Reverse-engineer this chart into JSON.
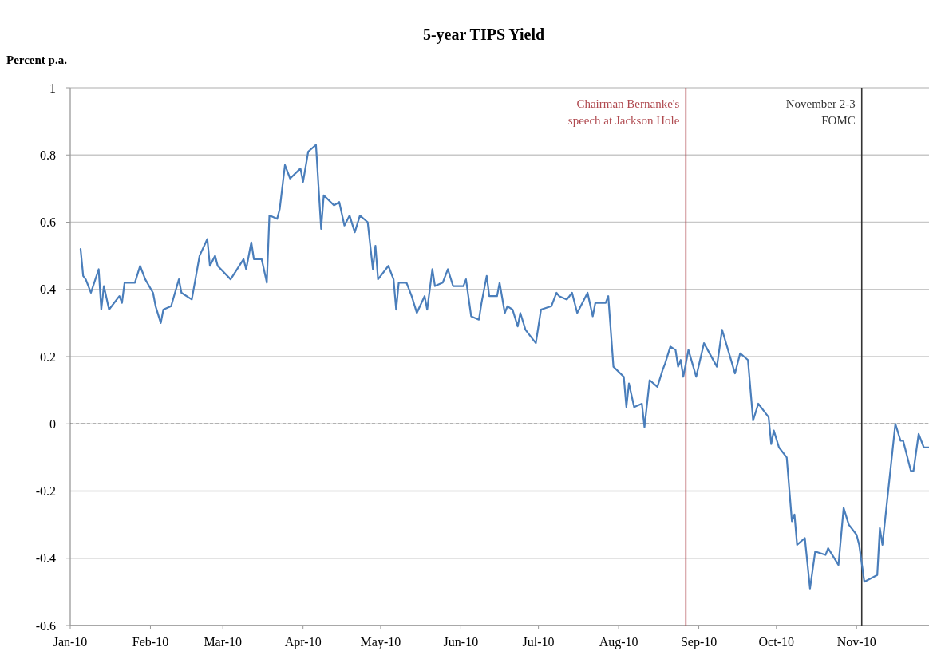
{
  "chart_data": {
    "type": "line",
    "title": "5-year TIPS Yield",
    "ylabel": "Percent p.a.",
    "x": [
      "2010-01-05",
      "2010-01-06",
      "2010-01-07",
      "2010-01-09",
      "2010-01-12",
      "2010-01-13",
      "2010-01-14",
      "2010-01-16",
      "2010-01-20",
      "2010-01-21",
      "2010-01-22",
      "2010-01-26",
      "2010-01-28",
      "2010-01-30",
      "2010-02-02",
      "2010-02-03",
      "2010-02-05",
      "2010-02-06",
      "2010-02-09",
      "2010-02-12",
      "2010-02-13",
      "2010-02-17",
      "2010-02-20",
      "2010-02-23",
      "2010-02-24",
      "2010-02-26",
      "2010-02-27",
      "2010-03-04",
      "2010-03-09",
      "2010-03-10",
      "2010-03-12",
      "2010-03-13",
      "2010-03-16",
      "2010-03-18",
      "2010-03-19",
      "2010-03-22",
      "2010-03-23",
      "2010-03-25",
      "2010-03-27",
      "2010-03-31",
      "2010-04-01",
      "2010-04-03",
      "2010-04-06",
      "2010-04-08",
      "2010-04-09",
      "2010-04-13",
      "2010-04-15",
      "2010-04-17",
      "2010-04-19",
      "2010-04-21",
      "2010-04-23",
      "2010-04-26",
      "2010-04-28",
      "2010-04-29",
      "2010-04-30",
      "2010-05-04",
      "2010-05-06",
      "2010-05-07",
      "2010-05-08",
      "2010-05-11",
      "2010-05-13",
      "2010-05-15",
      "2010-05-18",
      "2010-05-19",
      "2010-05-21",
      "2010-05-22",
      "2010-05-25",
      "2010-05-27",
      "2010-05-29",
      "2010-06-02",
      "2010-06-03",
      "2010-06-05",
      "2010-06-08",
      "2010-06-09",
      "2010-06-11",
      "2010-06-12",
      "2010-06-15",
      "2010-06-16",
      "2010-06-18",
      "2010-06-19",
      "2010-06-21",
      "2010-06-23",
      "2010-06-24",
      "2010-06-26",
      "2010-06-30",
      "2010-07-02",
      "2010-07-06",
      "2010-07-08",
      "2010-07-09",
      "2010-07-12",
      "2010-07-14",
      "2010-07-16",
      "2010-07-20",
      "2010-07-22",
      "2010-07-23",
      "2010-07-27",
      "2010-07-28",
      "2010-07-30",
      "2010-08-03",
      "2010-08-04",
      "2010-08-05",
      "2010-08-07",
      "2010-08-10",
      "2010-08-11",
      "2010-08-13",
      "2010-08-16",
      "2010-08-18",
      "2010-08-19",
      "2010-08-21",
      "2010-08-23",
      "2010-08-24",
      "2010-08-25",
      "2010-08-26",
      "2010-08-28",
      "2010-08-31",
      "2010-09-03",
      "2010-09-08",
      "2010-09-10",
      "2010-09-15",
      "2010-09-17",
      "2010-09-20",
      "2010-09-22",
      "2010-09-24",
      "2010-09-28",
      "2010-09-29",
      "2010-09-30",
      "2010-10-02",
      "2010-10-05",
      "2010-10-07",
      "2010-10-08",
      "2010-10-09",
      "2010-10-12",
      "2010-10-14",
      "2010-10-16",
      "2010-10-20",
      "2010-10-21",
      "2010-10-25",
      "2010-10-27",
      "2010-10-29",
      "2010-11-01",
      "2010-11-02",
      "2010-11-04",
      "2010-11-09",
      "2010-11-10",
      "2010-11-11",
      "2010-11-16",
      "2010-11-18",
      "2010-11-19",
      "2010-11-22",
      "2010-11-23",
      "2010-11-25",
      "2010-11-27",
      "2010-11-29"
    ],
    "series": [
      {
        "color": "#4a7ebb",
        "values": [
          0.52,
          0.44,
          0.43,
          0.39,
          0.46,
          0.34,
          0.41,
          0.34,
          0.38,
          0.36,
          0.42,
          0.42,
          0.47,
          0.43,
          0.39,
          0.35,
          0.3,
          0.34,
          0.35,
          0.43,
          0.39,
          0.37,
          0.5,
          0.55,
          0.47,
          0.5,
          0.47,
          0.43,
          0.49,
          0.46,
          0.54,
          0.49,
          0.49,
          0.42,
          0.62,
          0.61,
          0.64,
          0.77,
          0.73,
          0.76,
          0.72,
          0.81,
          0.83,
          0.58,
          0.68,
          0.65,
          0.66,
          0.59,
          0.62,
          0.57,
          0.62,
          0.6,
          0.46,
          0.53,
          0.43,
          0.47,
          0.43,
          0.34,
          0.42,
          0.42,
          0.38,
          0.33,
          0.38,
          0.34,
          0.46,
          0.41,
          0.42,
          0.46,
          0.41,
          0.41,
          0.43,
          0.32,
          0.31,
          0.36,
          0.44,
          0.38,
          0.38,
          0.42,
          0.33,
          0.35,
          0.34,
          0.29,
          0.33,
          0.28,
          0.24,
          0.34,
          0.35,
          0.39,
          0.38,
          0.37,
          0.39,
          0.33,
          0.39,
          0.32,
          0.36,
          0.36,
          0.38,
          0.17,
          0.14,
          0.05,
          0.12,
          0.05,
          0.06,
          -0.01,
          0.13,
          0.11,
          0.16,
          0.18,
          0.23,
          0.22,
          0.17,
          0.19,
          0.14,
          0.22,
          0.14,
          0.24,
          0.17,
          0.28,
          0.15,
          0.21,
          0.19,
          0.01,
          0.06,
          0.02,
          -0.06,
          -0.02,
          -0.07,
          -0.1,
          -0.29,
          -0.27,
          -0.36,
          -0.34,
          -0.49,
          -0.38,
          -0.39,
          -0.37,
          -0.42,
          -0.25,
          -0.3,
          -0.33,
          -0.36,
          -0.47,
          -0.45,
          -0.31,
          -0.36,
          0.0,
          -0.05,
          -0.05,
          -0.14,
          -0.14,
          -0.03,
          -0.07,
          -0.07
        ]
      }
    ],
    "xlim": [
      "2010-01-01",
      "2010-11-29"
    ],
    "xticks": [
      {
        "value": "2010-01-01",
        "label": "Jan-10"
      },
      {
        "value": "2010-02-01",
        "label": "Feb-10"
      },
      {
        "value": "2010-03-01",
        "label": "Mar-10"
      },
      {
        "value": "2010-04-01",
        "label": "Apr-10"
      },
      {
        "value": "2010-05-01",
        "label": "May-10"
      },
      {
        "value": "2010-06-01",
        "label": "Jun-10"
      },
      {
        "value": "2010-07-01",
        "label": "Jul-10"
      },
      {
        "value": "2010-08-01",
        "label": "Aug-10"
      },
      {
        "value": "2010-09-01",
        "label": "Sep-10"
      },
      {
        "value": "2010-10-01",
        "label": "Oct-10"
      },
      {
        "value": "2010-11-01",
        "label": "Nov-10"
      }
    ],
    "ylim": [
      -0.6,
      1
    ],
    "yticks": [
      -0.6,
      -0.4,
      -0.2,
      0,
      0.2,
      0.4,
      0.6,
      0.8,
      1
    ],
    "grid": "y",
    "marker": "none",
    "line_style": "solid",
    "ref_lines": [
      {
        "axis": "x",
        "value": "2010-08-27",
        "label": "Chairman Bernanke's\nspeech at Jackson Hole",
        "color": "#b04a50"
      },
      {
        "axis": "x",
        "value": "2010-11-03",
        "label": "November 2-3\nFOMC",
        "color": "#333333"
      },
      {
        "axis": "y",
        "value": 0,
        "color": "#222222",
        "line_style": "dashed"
      }
    ]
  }
}
